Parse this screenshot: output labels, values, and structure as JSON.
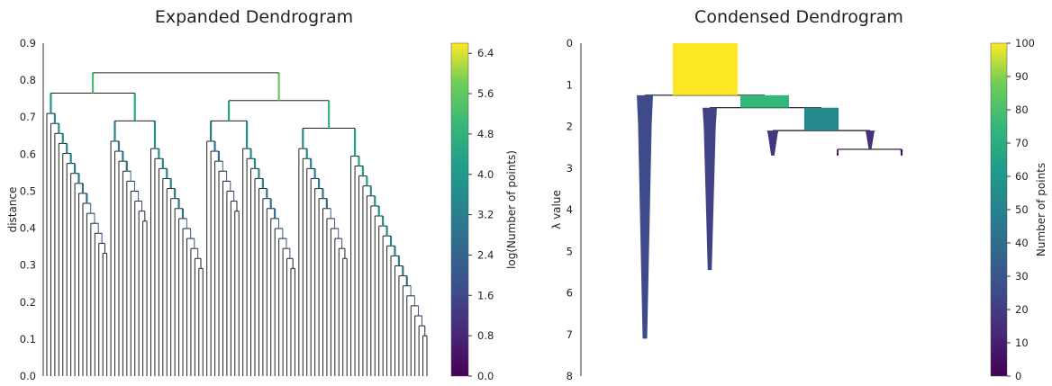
{
  "chart_data": [
    {
      "type": "dendrogram",
      "title": "Expanded Dendrogram",
      "ylabel": "distance",
      "ylim": [
        0,
        0.9
      ],
      "yticks": [
        "0.0",
        "0.1",
        "0.2",
        "0.3",
        "0.4",
        "0.5",
        "0.6",
        "0.7",
        "0.8",
        "0.9"
      ],
      "colorbar": {
        "label": "log(Number of points)",
        "range": [
          0,
          6.6
        ],
        "ticks": [
          "0.0",
          "0.8",
          "1.6",
          "2.4",
          "3.2",
          "4.0",
          "4.8",
          "5.6",
          "6.4"
        ],
        "colormap": "viridis"
      },
      "merge_heights": [
        0.82,
        0.8,
        0.7,
        0.64,
        0.61,
        0.57,
        0.54,
        0.51,
        0.49,
        0.45,
        0.44,
        0.43,
        0.42,
        0.41,
        0.4,
        0.39,
        0.38,
        0.37,
        0.36,
        0.35,
        0.33,
        0.31,
        0.29,
        0.27,
        0.25,
        0.23,
        0.21,
        0.19,
        0.16,
        0.14,
        0.11
      ]
    },
    {
      "type": "condensed-dendrogram",
      "title": "Condensed Dendrogram",
      "ylabel": "λ value",
      "ylim": [
        0,
        8
      ],
      "yticks": [
        "0",
        "1",
        "2",
        "3",
        "4",
        "5",
        "6",
        "7",
        "8"
      ],
      "colorbar": {
        "label": "Number of points",
        "range": [
          0,
          100
        ],
        "ticks": [
          "0",
          "10",
          "20",
          "30",
          "40",
          "50",
          "60",
          "70",
          "80",
          "90",
          "100"
        ],
        "colormap": "viridis"
      },
      "branches": [
        {
          "lambda_start": 0.0,
          "lambda_end": 1.25,
          "points": 100
        },
        {
          "lambda_start": 1.25,
          "lambda_end": 7.1,
          "points": 25
        },
        {
          "lambda_start": 1.25,
          "lambda_end": 1.55,
          "points": 75
        },
        {
          "lambda_start": 1.55,
          "lambda_end": 5.45,
          "points": 22
        },
        {
          "lambda_start": 1.55,
          "lambda_end": 2.1,
          "points": 53
        },
        {
          "lambda_start": 2.1,
          "lambda_end": 2.7,
          "points": 18
        },
        {
          "lambda_start": 2.1,
          "lambda_end": 2.55,
          "points": 15
        },
        {
          "lambda_start": 2.55,
          "lambda_end": 2.7,
          "points": 2
        },
        {
          "lambda_start": 2.55,
          "lambda_end": 2.7,
          "points": 4
        }
      ]
    }
  ]
}
